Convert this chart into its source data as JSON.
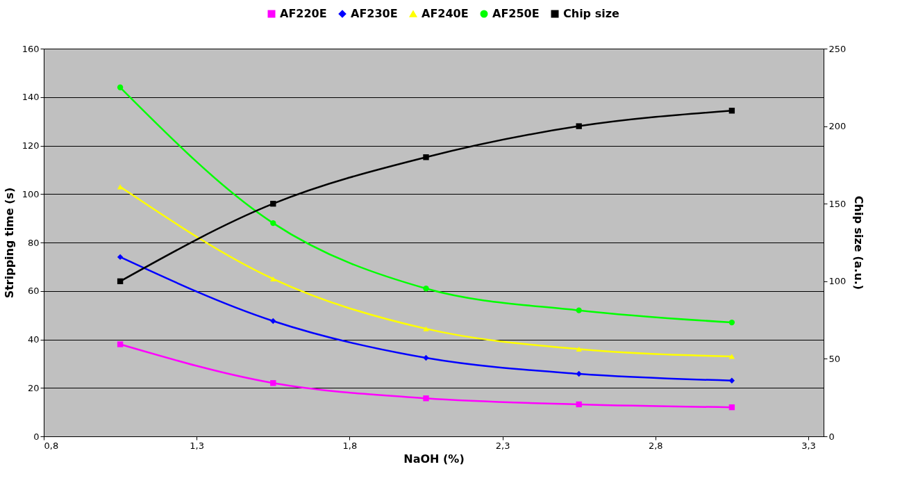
{
  "chart_data": {
    "type": "line",
    "xlabel": "NaOH (%)",
    "ylabel": "Stripping time (s)",
    "y2label": "Chip size (a.u.)",
    "x": [
      1.05,
      1.55,
      2.05,
      2.55,
      3.05
    ],
    "xlim": [
      0.8,
      3.35
    ],
    "xticks": [
      {
        "value": 0.8,
        "label": "0,8"
      },
      {
        "value": 1.3,
        "label": "1,3"
      },
      {
        "value": 1.8,
        "label": "1,8"
      },
      {
        "value": 2.3,
        "label": "2,3"
      },
      {
        "value": 2.8,
        "label": "2,8"
      },
      {
        "value": 3.3,
        "label": "3,3"
      }
    ],
    "ylim": [
      0,
      160
    ],
    "yticks": [
      0,
      20,
      40,
      60,
      80,
      100,
      120,
      140,
      160
    ],
    "y2lim": [
      0,
      250
    ],
    "y2ticks": [
      0,
      50,
      100,
      150,
      200,
      250
    ],
    "grid": "y",
    "legend": "top",
    "series": [
      {
        "name": "AF220E",
        "color": "#ff00ff",
        "marker": "square",
        "values": [
          38,
          22,
          15.7,
          13.2,
          12
        ]
      },
      {
        "name": "AF230E",
        "color": "#0000ff",
        "marker": "diamond",
        "values": [
          74,
          47.6,
          32.4,
          25.8,
          23
        ]
      },
      {
        "name": "AF240E",
        "color": "#ffff00",
        "marker": "triangle",
        "values": [
          103,
          65,
          44.4,
          36,
          33
        ]
      },
      {
        "name": "AF250E",
        "color": "#00ff00",
        "marker": "circle",
        "values": [
          144,
          88,
          61,
          52,
          47
        ]
      },
      {
        "name": "Chip size",
        "color": "#000000",
        "marker": "square",
        "axis": "y2",
        "values": [
          100,
          150,
          180,
          200,
          210
        ]
      }
    ]
  }
}
